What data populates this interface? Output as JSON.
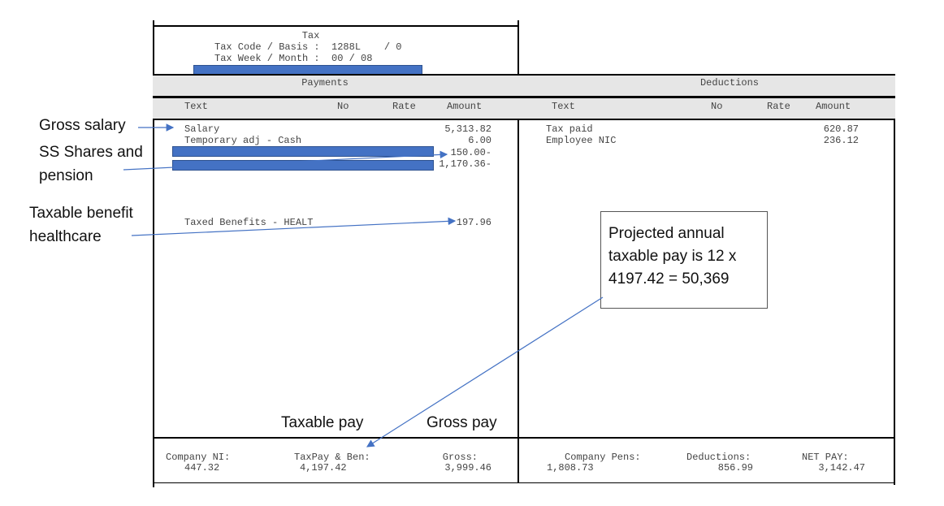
{
  "tax": {
    "title": "Tax",
    "code_line": "Tax Code / Basis :  1288L    / 0",
    "week_line": "Tax Week / Month :  00 / 08"
  },
  "sections": {
    "payments": "Payments",
    "deductions": "Deductions"
  },
  "columns": {
    "text": "Text",
    "no": "No",
    "rate": "Rate",
    "amount": "Amount"
  },
  "payments": [
    {
      "text": "Salary",
      "amount": "5,313.82"
    },
    {
      "text": "Temporary adj - Cash",
      "amount": "6.00"
    },
    {
      "text": "",
      "amount": "150.00-",
      "redacted": true
    },
    {
      "text": "",
      "amount": "1,170.36-",
      "redacted": true
    },
    {
      "text": "Taxed Benefits - HEALT",
      "amount": "197.96"
    }
  ],
  "deductions": [
    {
      "text": "Tax paid",
      "amount": "620.87"
    },
    {
      "text": "Employee NIC",
      "amount": "236.12"
    }
  ],
  "totals": {
    "company_ni_label": "Company NI:",
    "company_ni": "447.32",
    "taxpay_label": "TaxPay & Ben:",
    "taxpay": "4,197.42",
    "gross_label": "Gross:",
    "gross": "3,999.46",
    "company_pens_label": "Company Pens:",
    "company_pens": "1,808.73",
    "deductions_label": "Deductions:",
    "deductions": "856.99",
    "net_pay_label": "NET PAY:",
    "net_pay": "3,142.47"
  },
  "annotations": {
    "gross_salary": "Gross salary",
    "ss_shares_1": "SS Shares and",
    "ss_shares_2": "pension",
    "taxable_benefit_1": "Taxable benefit",
    "taxable_benefit_2": "healthcare",
    "taxable_pay": "Taxable pay",
    "gross_pay": "Gross pay",
    "callout_1": "Projected annual",
    "callout_2": "taxable pay is 12 x",
    "callout_3": "4197.42 = 50,369"
  },
  "colors": {
    "arrow": "#4472c4",
    "redaction": "#4472c4",
    "band": "#e6e6e6"
  }
}
